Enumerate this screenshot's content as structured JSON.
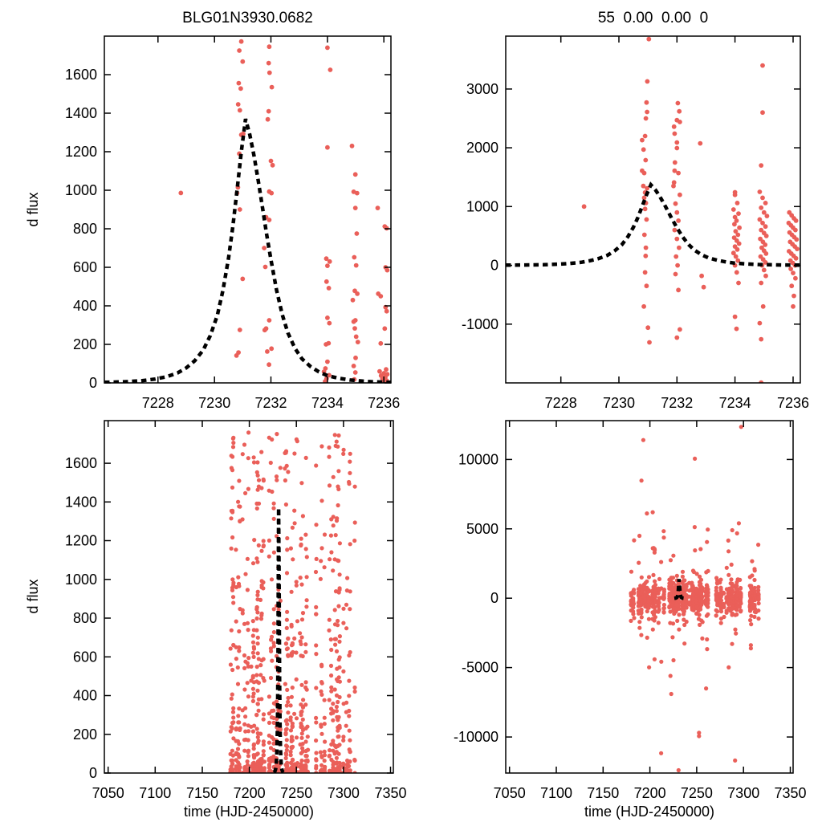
{
  "page": {
    "background": "#ffffff"
  },
  "colors": {
    "point": "#ea5f59",
    "model": "#000000",
    "axis": "#000000",
    "text": "#000000"
  },
  "labels": {
    "title_left": "BLG01N3930.0682",
    "title_right": "55  0.00  0.00  0",
    "ylabel": "d flux",
    "xlabel": "time (HJD-2450000)"
  },
  "model_params": {
    "t0": 7231.1,
    "peak_difference_flux": 1370,
    "baseline": 0
  },
  "model_curve": [
    [
      7226.1,
      3
    ],
    [
      7226.8,
      6
    ],
    [
      7227.4,
      11
    ],
    [
      7227.9,
      20
    ],
    [
      7228.3,
      32
    ],
    [
      7228.7,
      52
    ],
    [
      7229.0,
      78
    ],
    [
      7229.3,
      115
    ],
    [
      7229.6,
      170
    ],
    [
      7229.85,
      245
    ],
    [
      7230.1,
      350
    ],
    [
      7230.3,
      480
    ],
    [
      7230.5,
      650
    ],
    [
      7230.65,
      810
    ],
    [
      7230.8,
      1000
    ],
    [
      7230.95,
      1200
    ],
    [
      7231.1,
      1370
    ],
    [
      7231.25,
      1290
    ],
    [
      7231.4,
      1180
    ],
    [
      7231.55,
      1050
    ],
    [
      7231.7,
      910
    ],
    [
      7231.85,
      770
    ],
    [
      7232.0,
      640
    ],
    [
      7232.2,
      480
    ],
    [
      7232.4,
      355
    ],
    [
      7232.6,
      260
    ],
    [
      7232.85,
      180
    ],
    [
      7233.1,
      125
    ],
    [
      7233.4,
      85
    ],
    [
      7233.7,
      57
    ],
    [
      7234.0,
      38
    ],
    [
      7234.4,
      24
    ],
    [
      7234.8,
      15
    ],
    [
      7235.2,
      10
    ],
    [
      7235.6,
      6
    ],
    [
      7236.25,
      3
    ]
  ],
  "chart_data": [
    {
      "id": "tl",
      "type": "scatter",
      "title": "BLG01N3930.0682",
      "ylabel": "d flux",
      "xlim": [
        7226.1,
        7236.25
      ],
      "ylim": [
        0,
        1800
      ],
      "xticks": [
        7228,
        7230,
        7232,
        7234,
        7236
      ],
      "yticks": [
        0,
        200,
        400,
        600,
        800,
        1000,
        1200,
        1400,
        1600
      ],
      "has_model_curve": true,
      "points": [
        [
          7230.95,
          1772
        ],
        [
          7230.88,
          1725
        ],
        [
          7231.0,
          1668
        ],
        [
          7230.86,
          1556
        ],
        [
          7230.93,
          1528
        ],
        [
          7230.84,
          1446
        ],
        [
          7230.9,
          1415
        ],
        [
          7230.95,
          1288
        ],
        [
          7231.02,
          1293
        ],
        [
          7230.88,
          1190
        ],
        [
          7230.83,
          1015
        ],
        [
          7230.8,
          985
        ],
        [
          7230.9,
          900
        ],
        [
          7231.0,
          540
        ],
        [
          7230.9,
          275
        ],
        [
          7230.85,
          158
        ],
        [
          7230.78,
          142
        ],
        [
          7231.94,
          1745
        ],
        [
          7231.92,
          1660
        ],
        [
          7231.95,
          1610
        ],
        [
          7232.03,
          1535
        ],
        [
          7231.92,
          1410
        ],
        [
          7231.89,
          1368
        ],
        [
          7232.0,
          1152
        ],
        [
          7232.06,
          1130
        ],
        [
          7231.94,
          993
        ],
        [
          7232.02,
          985
        ],
        [
          7231.83,
          860
        ],
        [
          7231.94,
          846
        ],
        [
          7231.76,
          700
        ],
        [
          7231.8,
          602
        ],
        [
          7231.94,
          325
        ],
        [
          7231.83,
          282
        ],
        [
          7231.78,
          274
        ],
        [
          7232.02,
          178
        ],
        [
          7231.87,
          163
        ],
        [
          7231.93,
          95
        ],
        [
          7228.81,
          986
        ],
        [
          7234.0,
          1740
        ],
        [
          7234.1,
          1625
        ],
        [
          7234.0,
          1222
        ],
        [
          7233.96,
          645
        ],
        [
          7234.08,
          630
        ],
        [
          7234.0,
          608
        ],
        [
          7233.97,
          526
        ],
        [
          7234.05,
          492
        ],
        [
          7234.0,
          338
        ],
        [
          7234.07,
          310
        ],
        [
          7233.95,
          200
        ],
        [
          7234.04,
          206
        ],
        [
          7234.0,
          110
        ],
        [
          7233.93,
          75
        ],
        [
          7233.88,
          58
        ],
        [
          7233.97,
          22
        ],
        [
          7234.06,
          40
        ],
        [
          7233.92,
          8
        ],
        [
          7234.87,
          1230
        ],
        [
          7234.99,
          1082
        ],
        [
          7234.93,
          992
        ],
        [
          7235.05,
          985
        ],
        [
          7234.99,
          908
        ],
        [
          7235.04,
          775
        ],
        [
          7234.95,
          652
        ],
        [
          7235.02,
          610
        ],
        [
          7234.97,
          478
        ],
        [
          7235.06,
          463
        ],
        [
          7234.9,
          430
        ],
        [
          7234.99,
          325
        ],
        [
          7234.93,
          318
        ],
        [
          7234.97,
          283
        ],
        [
          7235.02,
          240
        ],
        [
          7235.08,
          212
        ],
        [
          7235.0,
          130
        ],
        [
          7234.93,
          88
        ],
        [
          7234.99,
          54
        ],
        [
          7234.95,
          18
        ],
        [
          7235.78,
          908
        ],
        [
          7236.03,
          812
        ],
        [
          7236.1,
          803
        ],
        [
          7236.06,
          600
        ],
        [
          7236.12,
          585
        ],
        [
          7235.8,
          463
        ],
        [
          7235.89,
          450
        ],
        [
          7236.06,
          393
        ],
        [
          7236.1,
          372
        ],
        [
          7236.03,
          282
        ],
        [
          7235.89,
          205
        ],
        [
          7236.08,
          70
        ],
        [
          7235.85,
          60
        ],
        [
          7236.0,
          50
        ],
        [
          7236.12,
          45
        ],
        [
          7235.9,
          38
        ],
        [
          7236.05,
          30
        ],
        [
          7235.95,
          22
        ],
        [
          7236.1,
          12
        ],
        [
          7235.98,
          8
        ]
      ]
    },
    {
      "id": "tr",
      "type": "scatter",
      "title": "55  0.00  0.00  0",
      "xlim": [
        7226.1,
        7236.25
      ],
      "ylim": [
        -2000,
        3900
      ],
      "xticks": [
        7228,
        7230,
        7232,
        7234,
        7236
      ],
      "yticks": [
        -1000,
        0,
        1000,
        2000,
        3000
      ],
      "has_model_curve": true,
      "points": [
        [
          7231.03,
          3850
        ],
        [
          7230.98,
          3130
        ],
        [
          7230.95,
          2770
        ],
        [
          7230.97,
          2610
        ],
        [
          7230.93,
          2500
        ],
        [
          7230.9,
          2200
        ],
        [
          7230.8,
          2130
        ],
        [
          7230.85,
          1970
        ],
        [
          7230.92,
          1790
        ],
        [
          7230.8,
          1610
        ],
        [
          7230.87,
          1570
        ],
        [
          7230.84,
          1350
        ],
        [
          7230.97,
          1310
        ],
        [
          7230.9,
          1240
        ],
        [
          7230.87,
          1150
        ],
        [
          7230.93,
          1060
        ],
        [
          7230.9,
          960
        ],
        [
          7230.95,
          780
        ],
        [
          7230.88,
          520
        ],
        [
          7230.93,
          300
        ],
        [
          7230.92,
          160
        ],
        [
          7230.9,
          -120
        ],
        [
          7230.95,
          -350
        ],
        [
          7230.86,
          -700
        ],
        [
          7231.0,
          -1060
        ],
        [
          7231.05,
          -1310
        ],
        [
          7232.03,
          2760
        ],
        [
          7232.08,
          2620
        ],
        [
          7232.0,
          2470
        ],
        [
          7232.1,
          2440
        ],
        [
          7231.9,
          2360
        ],
        [
          7231.92,
          2240
        ],
        [
          7232.0,
          2090
        ],
        [
          7232.0,
          1995
        ],
        [
          7231.93,
          1750
        ],
        [
          7231.92,
          1610
        ],
        [
          7232.05,
          1570
        ],
        [
          7231.9,
          1410
        ],
        [
          7231.88,
          1350
        ],
        [
          7232.1,
          1200
        ],
        [
          7231.95,
          1050
        ],
        [
          7232.0,
          900
        ],
        [
          7232.05,
          760
        ],
        [
          7231.92,
          600
        ],
        [
          7232.0,
          450
        ],
        [
          7232.07,
          300
        ],
        [
          7231.97,
          150
        ],
        [
          7232.02,
          0
        ],
        [
          7231.95,
          -150
        ],
        [
          7232.05,
          -420
        ],
        [
          7232.1,
          -1090
        ],
        [
          7232.0,
          -1230
        ],
        [
          7228.8,
          1000
        ],
        [
          7232.8,
          2075
        ],
        [
          7232.85,
          -180
        ],
        [
          7232.92,
          -370
        ],
        [
          7234.0,
          1243
        ],
        [
          7234.0,
          1200
        ],
        [
          7234.08,
          1060
        ],
        [
          7233.95,
          950
        ],
        [
          7234.12,
          880
        ],
        [
          7234.0,
          820
        ],
        [
          7234.05,
          760
        ],
        [
          7233.98,
          700
        ],
        [
          7234.15,
          640
        ],
        [
          7234.02,
          580
        ],
        [
          7234.1,
          520
        ],
        [
          7233.97,
          470
        ],
        [
          7234.06,
          420
        ],
        [
          7234.14,
          370
        ],
        [
          7234.0,
          320
        ],
        [
          7234.08,
          270
        ],
        [
          7233.95,
          210
        ],
        [
          7234.03,
          150
        ],
        [
          7234.1,
          80
        ],
        [
          7234.0,
          0
        ],
        [
          7234.06,
          -120
        ],
        [
          7234.12,
          -300
        ],
        [
          7234.0,
          -874
        ],
        [
          7234.05,
          -1080
        ],
        [
          7234.95,
          3400
        ],
        [
          7234.95,
          2600
        ],
        [
          7234.9,
          1700
        ],
        [
          7234.85,
          1250
        ],
        [
          7234.95,
          1150
        ],
        [
          7235.05,
          1060
        ],
        [
          7234.9,
          980
        ],
        [
          7235.0,
          900
        ],
        [
          7235.1,
          840
        ],
        [
          7234.85,
          780
        ],
        [
          7234.95,
          720
        ],
        [
          7235.05,
          660
        ],
        [
          7234.9,
          600
        ],
        [
          7235.0,
          550
        ],
        [
          7235.08,
          500
        ],
        [
          7234.87,
          450
        ],
        [
          7234.96,
          400
        ],
        [
          7235.04,
          350
        ],
        [
          7234.92,
          300
        ],
        [
          7235.0,
          250
        ],
        [
          7235.07,
          200
        ],
        [
          7234.88,
          150
        ],
        [
          7234.97,
          100
        ],
        [
          7235.05,
          50
        ],
        [
          7234.93,
          0
        ],
        [
          7235.0,
          -80
        ],
        [
          7235.06,
          -180
        ],
        [
          7234.9,
          -300
        ],
        [
          7234.97,
          -700
        ],
        [
          7234.85,
          -984
        ],
        [
          7234.9,
          -1257
        ],
        [
          7234.9,
          -1995
        ],
        [
          7235.87,
          900
        ],
        [
          7235.95,
          850
        ],
        [
          7236.03,
          800
        ],
        [
          7236.1,
          760
        ],
        [
          7235.85,
          720
        ],
        [
          7235.93,
          680
        ],
        [
          7236.0,
          640
        ],
        [
          7236.08,
          600
        ],
        [
          7235.88,
          560
        ],
        [
          7235.96,
          520
        ],
        [
          7236.04,
          480
        ],
        [
          7236.12,
          440
        ],
        [
          7235.9,
          400
        ],
        [
          7235.98,
          360
        ],
        [
          7236.06,
          320
        ],
        [
          7236.14,
          280
        ],
        [
          7235.86,
          240
        ],
        [
          7235.94,
          200
        ],
        [
          7236.02,
          160
        ],
        [
          7236.1,
          120
        ],
        [
          7235.91,
          80
        ],
        [
          7235.99,
          40
        ],
        [
          7236.07,
          0
        ],
        [
          7235.92,
          -60
        ],
        [
          7236.0,
          -130
        ],
        [
          7236.08,
          -220
        ],
        [
          7235.95,
          -350
        ],
        [
          7236.03,
          -520
        ],
        [
          7236.0,
          -700
        ]
      ]
    },
    {
      "id": "bl",
      "type": "scatter",
      "ylabel": "d flux",
      "xlabel": "time (HJD-2450000)",
      "xlim": [
        7046,
        7353
      ],
      "ylim": [
        0,
        1820
      ],
      "xticks": [
        7050,
        7100,
        7150,
        7200,
        7250,
        7300,
        7350
      ],
      "yticks": [
        0,
        200,
        400,
        600,
        800,
        1000,
        1200,
        1400,
        1600
      ],
      "has_model_curve": true,
      "seed": 7,
      "ydist": {
        "kind": "power",
        "ymax": 1760,
        "exponent": 3.2
      },
      "clusters": [
        {
          "x_start": 7180,
          "x_end": 7217,
          "night_prob": 0.55,
          "pts_min": 5,
          "pts_max": 26
        },
        {
          "x_start": 7221,
          "x_end": 7262,
          "night_prob": 0.55,
          "pts_min": 5,
          "pts_max": 28
        },
        {
          "x_start": 7271,
          "x_end": 7316,
          "night_prob": 0.5,
          "pts_min": 5,
          "pts_max": 24
        }
      ]
    },
    {
      "id": "br",
      "type": "scatter",
      "xlabel": "time (HJD-2450000)",
      "xlim": [
        7046,
        7353
      ],
      "ylim": [
        -12600,
        12800
      ],
      "xticks": [
        7050,
        7100,
        7150,
        7200,
        7250,
        7300,
        7350
      ],
      "yticks": [
        -10000,
        -5000,
        0,
        5000,
        10000
      ],
      "has_model_curve": true,
      "seed": 11,
      "ydist": {
        "kind": "gauss_mix",
        "sigmas": [
          480,
          1400,
          3200
        ],
        "weights": [
          0.78,
          0.17,
          0.05
        ],
        "clip": [
          -12400,
          12600
        ]
      },
      "clusters": [
        {
          "x_start": 7180,
          "x_end": 7217,
          "night_prob": 0.55,
          "pts_min": 4,
          "pts_max": 22
        },
        {
          "x_start": 7221,
          "x_end": 7262,
          "night_prob": 0.55,
          "pts_min": 4,
          "pts_max": 24
        },
        {
          "x_start": 7271,
          "x_end": 7316,
          "night_prob": 0.5,
          "pts_min": 4,
          "pts_max": 20
        }
      ],
      "outliers": [
        [
          7193,
          11400
        ],
        [
          7297.5,
          12350
        ],
        [
          7248,
          10060
        ],
        [
          7191,
          8480
        ],
        [
          7203,
          6200
        ],
        [
          7295,
          5400
        ],
        [
          7288,
          4900
        ],
        [
          7212,
          -11170
        ],
        [
          7291,
          -11700
        ],
        [
          7252.5,
          -9940
        ],
        [
          7252.5,
          -9700
        ],
        [
          7230.6,
          -12400
        ],
        [
          7222,
          -5600
        ],
        [
          7205,
          -4400
        ],
        [
          7260,
          -6500
        ]
      ]
    }
  ]
}
